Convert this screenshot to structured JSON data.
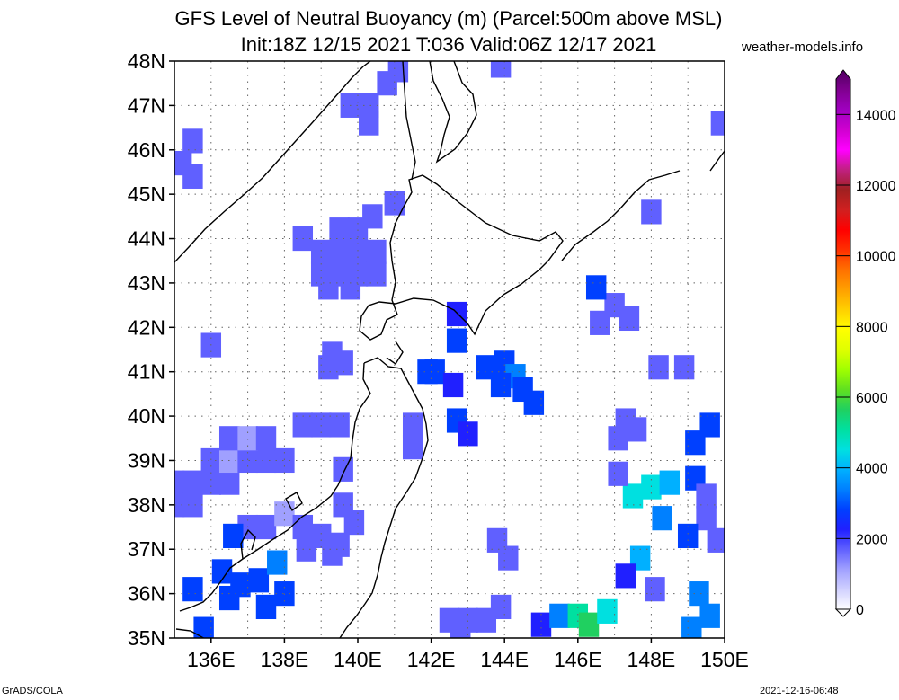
{
  "title": {
    "line1": "GFS Level of Neutral Buoyancy (m) (Parcel:500m above MSL)",
    "line2": "Init:18Z 12/15 2021 T:036 Valid:06Z 12/17 2021"
  },
  "credit": "weather-models.info",
  "footer": {
    "left": "GrADS/COLA",
    "right": "2021-12-16-06:48"
  },
  "map": {
    "lat_labels": [
      "35N",
      "36N",
      "37N",
      "38N",
      "39N",
      "40N",
      "41N",
      "42N",
      "43N",
      "44N",
      "45N",
      "46N",
      "47N",
      "48N"
    ],
    "lon_labels": [
      "136E",
      "138E",
      "140E",
      "142E",
      "144E",
      "146E",
      "148E",
      "150E"
    ],
    "lat_range": [
      35,
      48
    ],
    "lon_range": [
      135,
      150
    ],
    "gridlines": "dotted"
  },
  "colorbar": {
    "labels": [
      "0",
      "2000",
      "4000",
      "6000",
      "8000",
      "10000",
      "12000",
      "14000"
    ],
    "values": [
      0,
      2000,
      4000,
      6000,
      8000,
      10000,
      12000,
      14000
    ],
    "max": 15000,
    "colors": [
      "#ffffff",
      "#d0d0ff",
      "#a0a0ff",
      "#6060ff",
      "#2020ff",
      "#0040ff",
      "#0080ff",
      "#00b0ff",
      "#00e0e0",
      "#00e0a0",
      "#20d060",
      "#60e020",
      "#a0ff00",
      "#e0ff00",
      "#ffff00",
      "#ffd000",
      "#ffa000",
      "#ff7000",
      "#ff3000",
      "#ff0000",
      "#d02020",
      "#a02020",
      "#c02080",
      "#ff00ff",
      "#d000d0",
      "#a000c0",
      "#800090",
      "#500060"
    ]
  },
  "field": {
    "cells": [
      [
        135,
        38.5,
        1400
      ],
      [
        135.5,
        38.5,
        1500
      ],
      [
        136,
        38.5,
        1600
      ],
      [
        136.5,
        38.5,
        1400
      ],
      [
        135,
        38,
        1500
      ],
      [
        135.5,
        38,
        1400
      ],
      [
        136,
        39,
        1500
      ],
      [
        136.5,
        39,
        1300
      ],
      [
        137,
        39,
        1500
      ],
      [
        137.5,
        39,
        1400
      ],
      [
        138,
        39,
        1600
      ],
      [
        136.5,
        39.5,
        1400
      ],
      [
        137,
        39.5,
        1300
      ],
      [
        137.5,
        39.5,
        1500
      ],
      [
        138.5,
        39.8,
        1400
      ],
      [
        139,
        39.8,
        1500
      ],
      [
        139.5,
        39.8,
        1400
      ],
      [
        139.6,
        38.8,
        1400
      ],
      [
        135.5,
        46.2,
        1600
      ],
      [
        135.2,
        45.7,
        1600
      ],
      [
        135.5,
        45.4,
        1700
      ],
      [
        139.8,
        47,
        1500
      ],
      [
        140.3,
        47,
        1500
      ],
      [
        140.8,
        47.5,
        1400
      ],
      [
        141.1,
        47.8,
        1400
      ],
      [
        140.3,
        46.6,
        1500
      ],
      [
        139.5,
        44.2,
        1500
      ],
      [
        140,
        44.2,
        1400
      ],
      [
        140.4,
        44.5,
        1500
      ],
      [
        139,
        43.7,
        1400
      ],
      [
        139.5,
        43.7,
        1500
      ],
      [
        140,
        43.7,
        1400
      ],
      [
        140.5,
        43.7,
        1500
      ],
      [
        139,
        43.2,
        1400
      ],
      [
        139.5,
        43.2,
        1500
      ],
      [
        140,
        43.2,
        1400
      ],
      [
        140.5,
        43.2,
        1400
      ],
      [
        139.2,
        42.9,
        1500
      ],
      [
        139.8,
        42.9,
        1400
      ],
      [
        138.5,
        44,
        1600
      ],
      [
        141,
        44.8,
        1500
      ],
      [
        136,
        41.6,
        1600
      ],
      [
        139.3,
        41.4,
        1500
      ],
      [
        139.6,
        41.2,
        1400
      ],
      [
        139.2,
        41.1,
        1500
      ],
      [
        141.5,
        39.8,
        1700
      ],
      [
        141.5,
        39.3,
        1800
      ],
      [
        142.7,
        39.9,
        2500
      ],
      [
        143,
        39.6,
        2400
      ],
      [
        143.5,
        41.1,
        2800
      ],
      [
        144,
        41.2,
        3000
      ],
      [
        144.3,
        40.9,
        3200
      ],
      [
        144.5,
        40.6,
        2900
      ],
      [
        144.8,
        40.3,
        2600
      ],
      [
        143.9,
        40.7,
        2800
      ],
      [
        142.7,
        42.3,
        2300
      ],
      [
        142.7,
        41.7,
        2500
      ],
      [
        142.1,
        41,
        2600
      ],
      [
        142.6,
        40.7,
        2200
      ],
      [
        137,
        37.5,
        1500
      ],
      [
        137.5,
        37.5,
        1700
      ],
      [
        138,
        37.8,
        1300
      ],
      [
        138.5,
        37.5,
        1600
      ],
      [
        139,
        37.3,
        1600
      ],
      [
        139.5,
        37.1,
        1800
      ],
      [
        139.6,
        38,
        1600
      ],
      [
        139.9,
        37.6,
        1700
      ],
      [
        139.3,
        36.9,
        1900
      ],
      [
        138.6,
        37,
        1800
      ],
      [
        136.3,
        36.5,
        2600
      ],
      [
        136.8,
        36.2,
        2800
      ],
      [
        137.3,
        36.3,
        3000
      ],
      [
        137.8,
        36.7,
        3200
      ],
      [
        138,
        36,
        2900
      ],
      [
        137.5,
        35.7,
        2700
      ],
      [
        136.5,
        35.9,
        2600
      ],
      [
        135.5,
        36.1,
        2500
      ],
      [
        135.8,
        35.2,
        2700
      ],
      [
        136.6,
        37.3,
        3000
      ],
      [
        142.5,
        35.4,
        1500
      ],
      [
        143,
        35.4,
        1400
      ],
      [
        143.5,
        35.4,
        1500
      ],
      [
        143.9,
        35.7,
        1600
      ],
      [
        142.8,
        35.1,
        1700
      ],
      [
        145,
        35.3,
        2000
      ],
      [
        145.5,
        35.5,
        3500
      ],
      [
        146,
        35.5,
        5000
      ],
      [
        146.3,
        35.3,
        5400
      ],
      [
        146.8,
        35.6,
        4200
      ],
      [
        147.5,
        38.2,
        4300
      ],
      [
        148,
        38.4,
        4600
      ],
      [
        148.5,
        38.5,
        3800
      ],
      [
        149.2,
        38.6,
        2600
      ],
      [
        149.5,
        38.2,
        1900
      ],
      [
        149.5,
        37.7,
        1800
      ],
      [
        149.8,
        37.2,
        1700
      ],
      [
        149.2,
        39.4,
        2800
      ],
      [
        149.6,
        39.8,
        2600
      ],
      [
        149,
        37.3,
        3000
      ],
      [
        148.3,
        37.7,
        3300
      ],
      [
        147.7,
        36.8,
        3700
      ],
      [
        147.3,
        36.4,
        2200
      ],
      [
        148.1,
        36.1,
        1700
      ],
      [
        149.3,
        36,
        3500
      ],
      [
        149.6,
        35.5,
        3400
      ],
      [
        149.1,
        35.2,
        3100
      ],
      [
        147.3,
        39.9,
        1600
      ],
      [
        147.6,
        39.7,
        1500
      ],
      [
        147.1,
        39.5,
        1700
      ],
      [
        148.2,
        41.1,
        1500
      ],
      [
        148.9,
        41.1,
        1600
      ],
      [
        147.4,
        42.2,
        1700
      ],
      [
        147,
        42.5,
        1600
      ],
      [
        146.6,
        42.1,
        1700
      ],
      [
        146.5,
        42.9,
        3000
      ],
      [
        148,
        44.6,
        1500
      ],
      [
        149.9,
        46.6,
        1600
      ],
      [
        143.9,
        47.9,
        1500
      ],
      [
        141.9,
        41,
        2600
      ],
      [
        147.1,
        38.7,
        1600
      ],
      [
        143.8,
        37.2,
        1700
      ],
      [
        144.1,
        36.8,
        1800
      ]
    ]
  }
}
